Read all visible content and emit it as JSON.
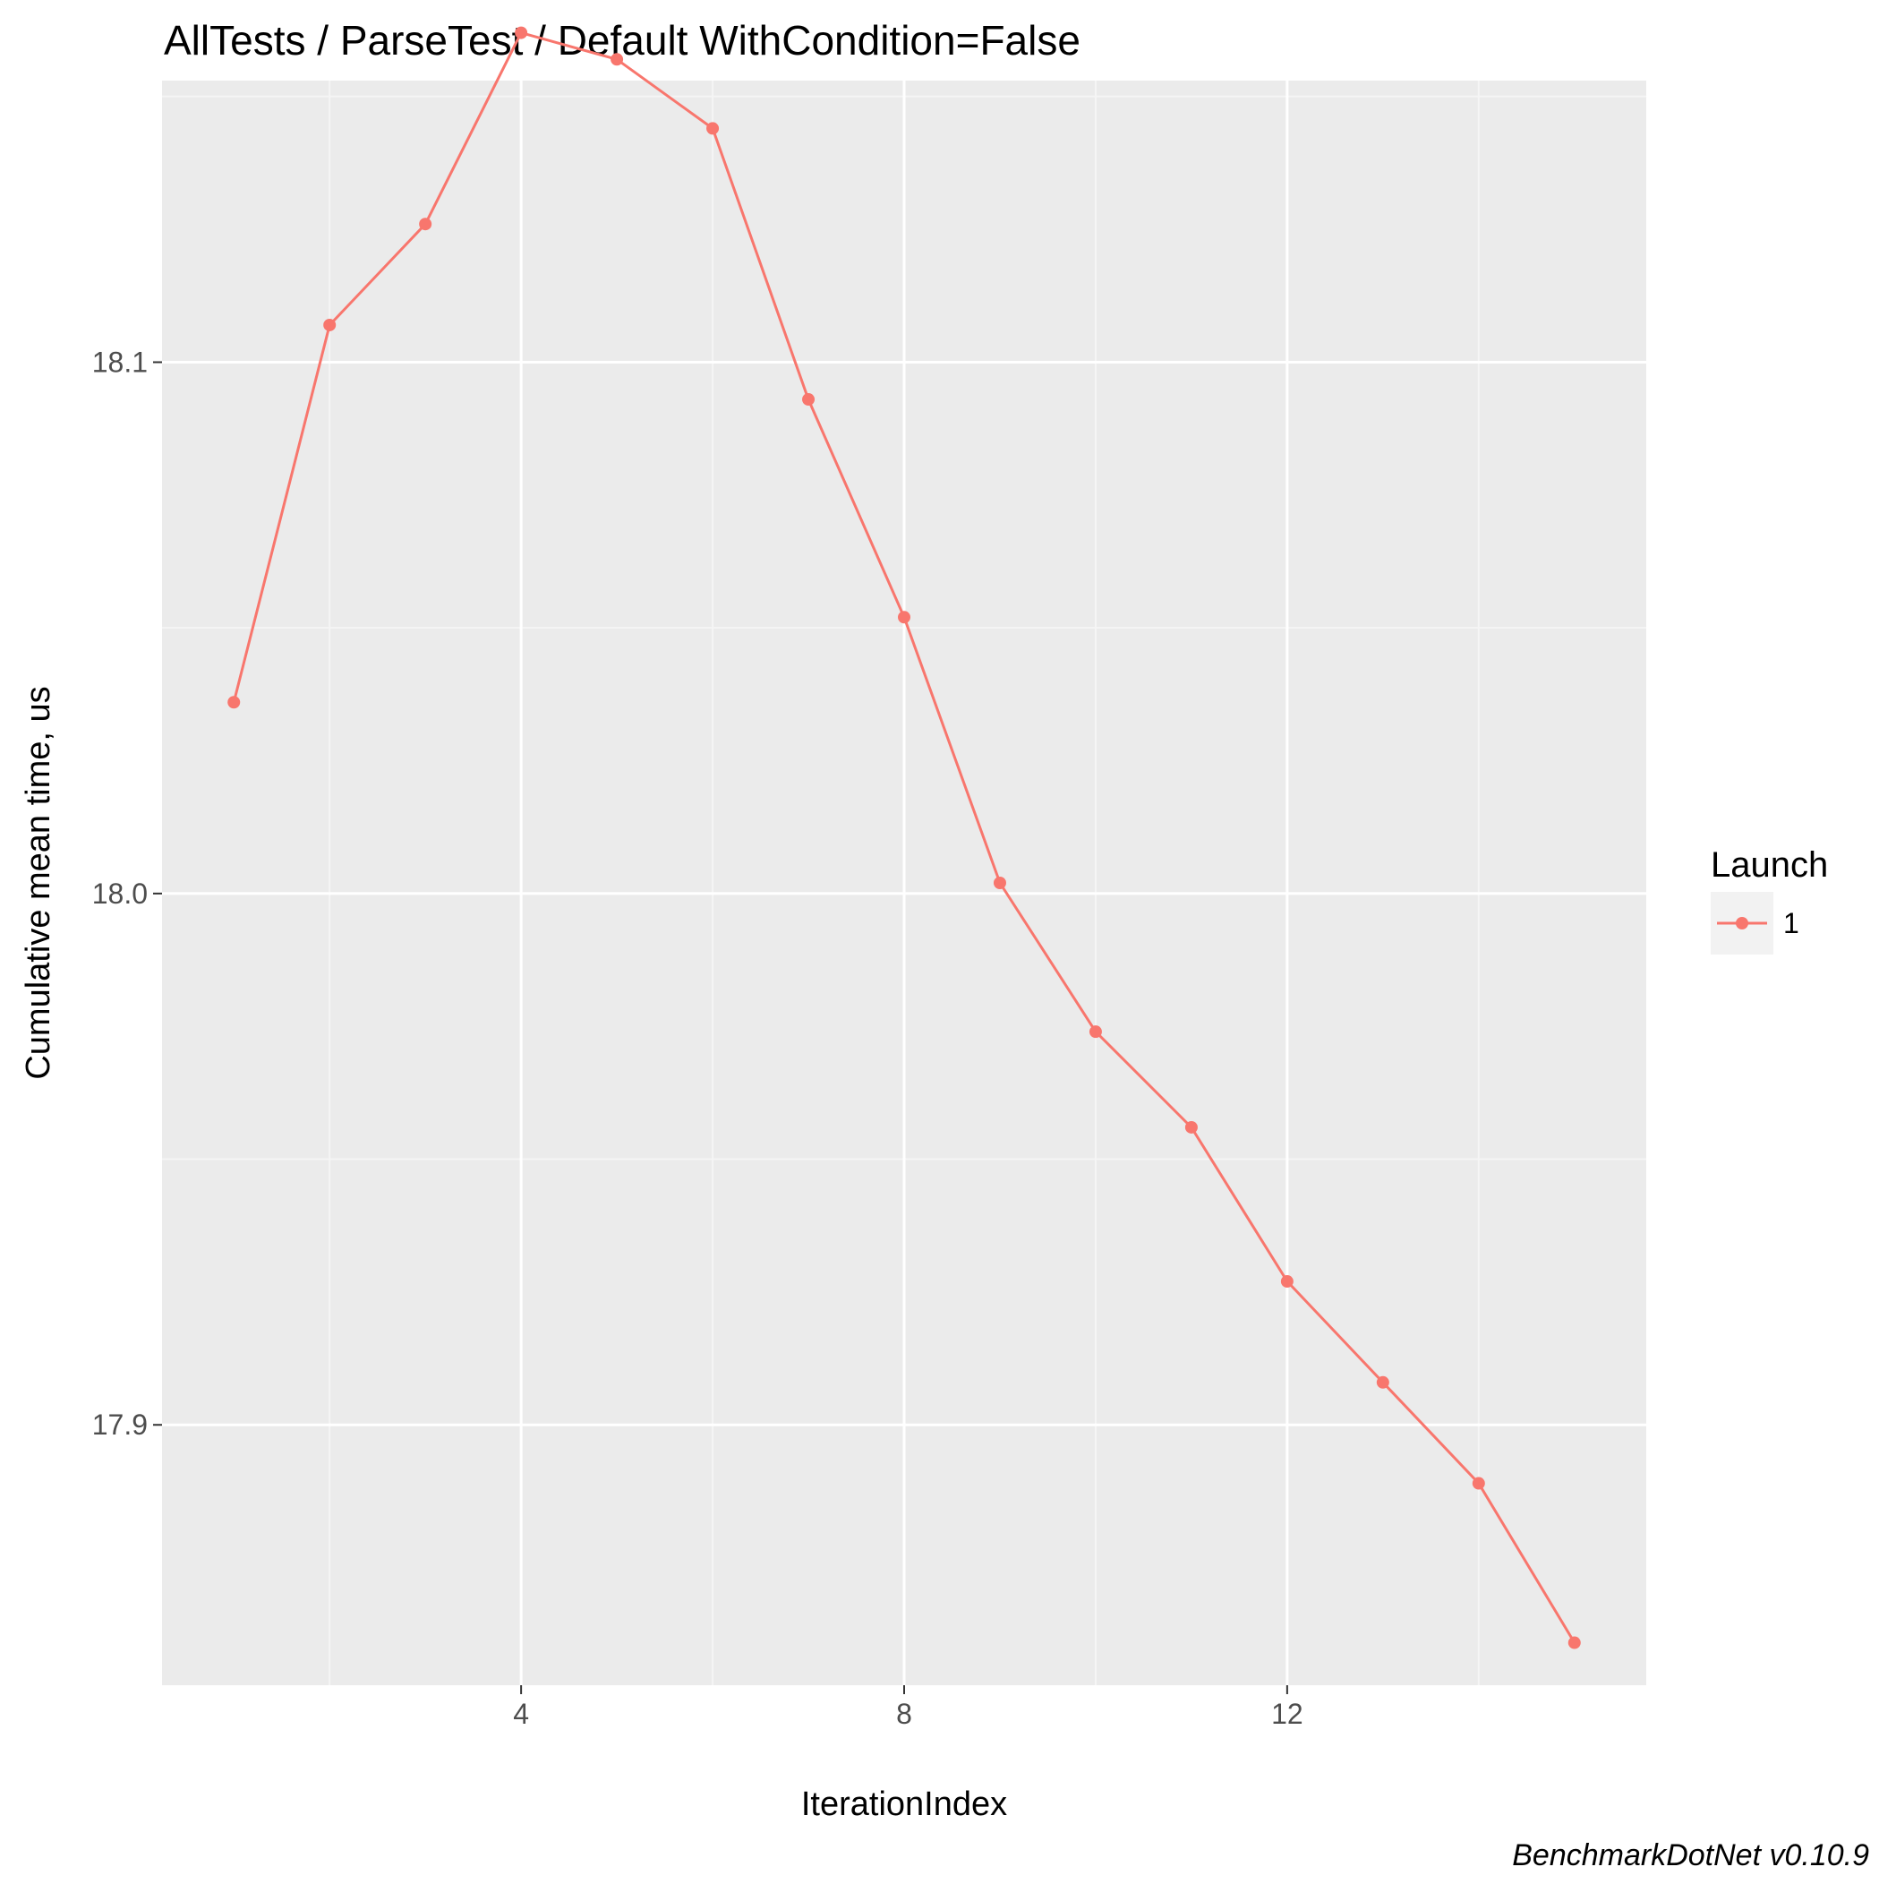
{
  "chart_data": {
    "type": "line",
    "title": "AllTests / ParseTest / Default WithCondition=False",
    "xlabel": "IterationIndex",
    "ylabel": "Cumulative mean time, us",
    "caption": "BenchmarkDotNet v0.10.9",
    "x_ticks": [
      4,
      8,
      12
    ],
    "y_ticks": [
      17.9,
      18.0,
      18.1
    ],
    "y_tick_labels": [
      "17.9",
      "18.0",
      "18.1"
    ],
    "x_range": [
      0.25,
      15.75
    ],
    "y_range": [
      17.851,
      18.153
    ],
    "grid": true,
    "legend": {
      "title": "Launch",
      "position": "right",
      "entries": [
        "1"
      ]
    },
    "series": [
      {
        "name": "1",
        "color": "#F8766D",
        "x": [
          1,
          2,
          3,
          4,
          5,
          6,
          7,
          8,
          9,
          10,
          11,
          12,
          13,
          14,
          15
        ],
        "values": [
          18.036,
          18.107,
          18.126,
          18.162,
          18.157,
          18.144,
          18.093,
          18.052,
          18.002,
          17.974,
          17.956,
          17.927,
          17.908,
          17.889,
          17.859
        ]
      }
    ],
    "colors": {
      "panel_background": "#EBEBEB",
      "grid_major": "#FFFFFF",
      "grid_minor": "#F5F5F5",
      "text": "#000000",
      "tick_text": "#4D4D4D"
    }
  }
}
